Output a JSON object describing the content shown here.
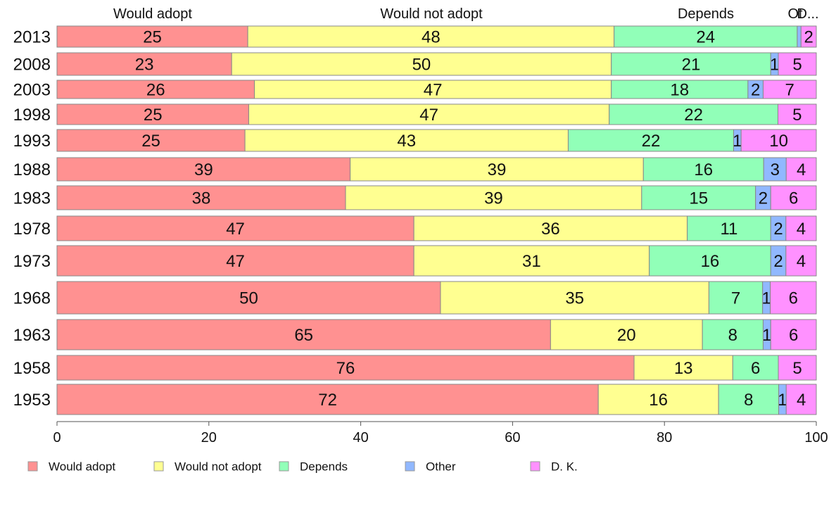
{
  "chart_data": {
    "type": "bar",
    "orientation": "horizontal",
    "stacked": true,
    "categories": [
      "2013",
      "2008",
      "2003",
      "1998",
      "1993",
      "1988",
      "1983",
      "1978",
      "1973",
      "1968",
      "1963",
      "1958",
      "1953"
    ],
    "series": [
      {
        "name": "Would adopt",
        "color": "#ff9191",
        "values": [
          25,
          23,
          26,
          25,
          25,
          39,
          38,
          47,
          47,
          50,
          65,
          76,
          72
        ]
      },
      {
        "name": "Would not adopt",
        "color": "#ffff91",
        "values": [
          48,
          50,
          47,
          47,
          43,
          39,
          39,
          36,
          31,
          35,
          20,
          13,
          16
        ]
      },
      {
        "name": "Depends",
        "color": "#91ffb8",
        "values": [
          24,
          21,
          18,
          22,
          22,
          16,
          15,
          11,
          16,
          7,
          8,
          6,
          8
        ]
      },
      {
        "name": "Other",
        "color": "#91b8ff",
        "values": [
          0.5,
          1,
          2,
          0,
          1,
          3,
          2,
          2,
          2,
          1,
          1,
          0,
          1
        ]
      },
      {
        "name": "D. K.",
        "color": "#ff91ff",
        "values": [
          2,
          5,
          7,
          5,
          10,
          4,
          6,
          4,
          4,
          6,
          6,
          5,
          4
        ]
      }
    ],
    "column_headers": [
      "Would adopt",
      "Would not adopt",
      "Depends",
      "Ot",
      "D..."
    ],
    "xlim": [
      0,
      100
    ],
    "xticks": [
      0,
      20,
      40,
      60,
      80,
      100
    ],
    "grid": false,
    "legend_position": "bottom"
  }
}
